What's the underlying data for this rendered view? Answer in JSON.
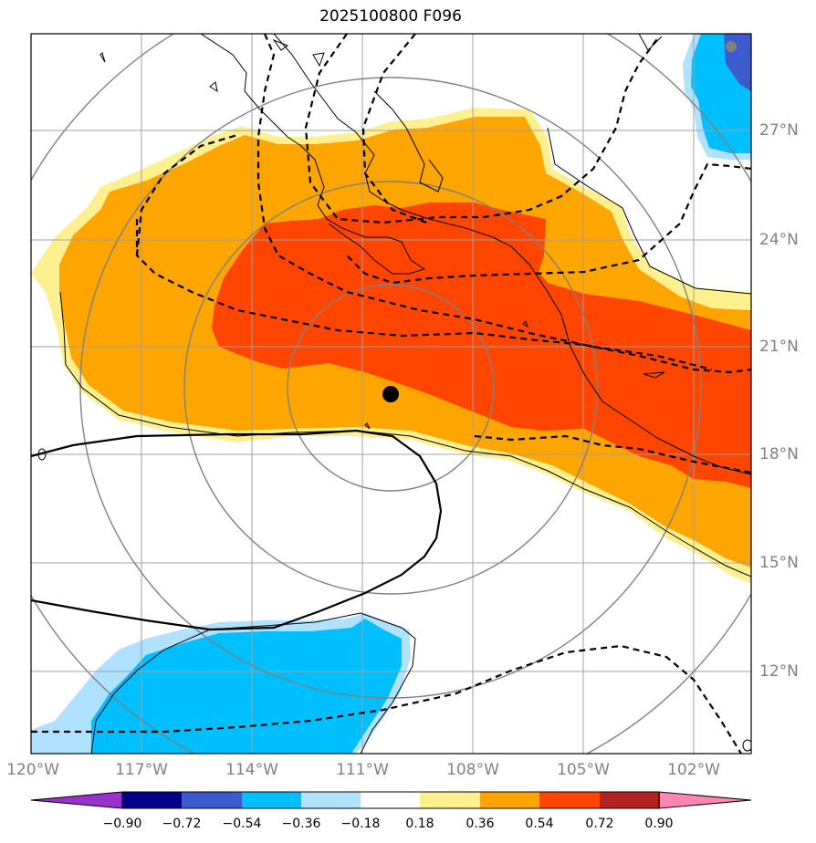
{
  "title": "2025100800 F096",
  "map": {
    "lon_labels": [
      "120°W",
      "117°W",
      "114°W",
      "111°W",
      "108°W",
      "105°W",
      "102°W"
    ],
    "lat_labels": [
      "27°N",
      "24°N",
      "21°N",
      "18°N",
      "15°N",
      "12°N"
    ],
    "storm_center": {
      "lon": -110.3,
      "lat": 19.7
    },
    "colors": {
      "gridline": "#a0a0a0",
      "range_ring": "#808080",
      "coastline": "#000000"
    }
  },
  "colorbar": {
    "tick_labels": [
      "−0.90",
      "−0.72",
      "−0.54",
      "−0.36",
      "−0.18",
      "0.18",
      "0.36",
      "0.54",
      "0.72",
      "0.90"
    ],
    "colors": [
      "#9932cc",
      "#00008b",
      "#3b5bcf",
      "#00bfff",
      "#b0e2ff",
      "#ffffff",
      "#fff08f",
      "#ffa500",
      "#ff4500",
      "#b22222",
      "#ff85b3"
    ]
  }
}
